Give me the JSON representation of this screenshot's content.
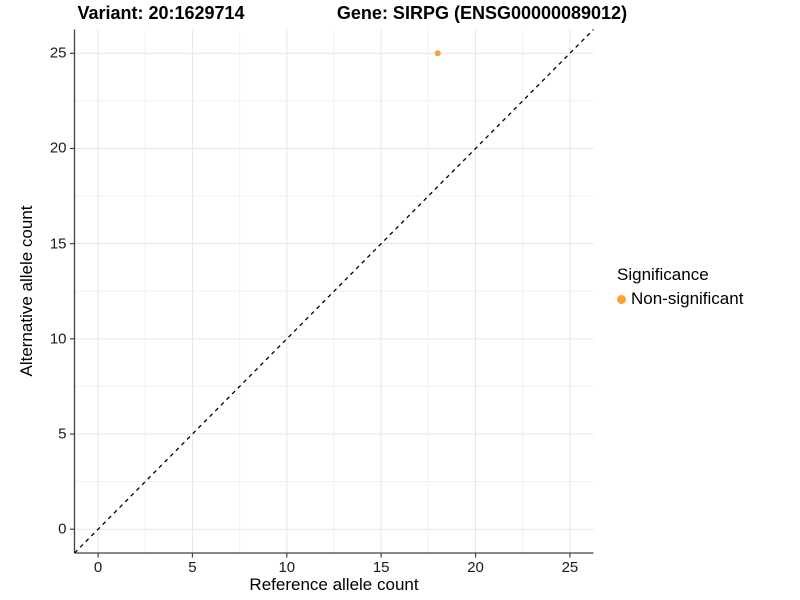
{
  "titles": {
    "left": "Variant: 20:1629714",
    "right": "Gene: SIRPG (ENSG00000089012)"
  },
  "chart_data": {
    "type": "scatter",
    "title_left": "Variant: 20:1629714",
    "title_right": "Gene: SIRPG (ENSG00000089012)",
    "xlabel": "Reference allele count",
    "ylabel": "Alternative allele count",
    "xlim": [
      -1.25,
      26.25
    ],
    "ylim": [
      -1.25,
      26.25
    ],
    "xticks": [
      0,
      5,
      10,
      15,
      20,
      25
    ],
    "yticks": [
      0,
      5,
      10,
      15,
      20,
      25
    ],
    "minor_grid": true,
    "grid": true,
    "points": [
      {
        "x": 18,
        "y": 25,
        "series": "Non-significant"
      }
    ],
    "reference_line": {
      "slope": 1,
      "intercept": 0,
      "style": "dashed",
      "color": "#000000"
    },
    "legend": {
      "title": "Significance",
      "position": "right",
      "items": [
        {
          "label": "Non-significant",
          "color": "#F9A22F"
        }
      ]
    }
  },
  "colors": {
    "significant_point": "#F9A22F",
    "grid_major": "#E6E6E6",
    "grid_minor": "#F1F1F1",
    "axis_line": "#404040",
    "tick_label": "#1a1a1a",
    "background": "#FFFFFF"
  }
}
